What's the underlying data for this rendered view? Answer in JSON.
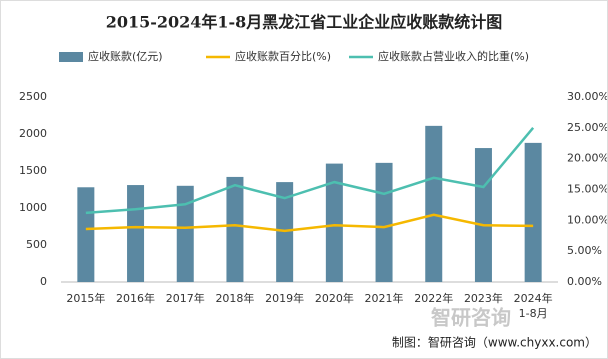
{
  "chart_data": {
    "type": "bar",
    "title": "2015-2024年1-8月黑龙江省工业企业应收账款统计图",
    "categories": [
      "2015年",
      "2016年",
      "2017年",
      "2018年",
      "2019年",
      "2020年",
      "2021年",
      "2022年",
      "2023年",
      "2024年\n1-8月"
    ],
    "series": [
      {
        "name": "应收账款(亿元)",
        "type": "bar",
        "color": "#5b88a1",
        "values": [
          1280,
          1310,
          1300,
          1420,
          1350,
          1600,
          1610,
          2110,
          1810,
          1880
        ]
      },
      {
        "name": "应收账款百分比(%)",
        "type": "line",
        "axis": "y2",
        "color": "#f5b800",
        "values": [
          8.6,
          8.9,
          8.8,
          9.2,
          8.3,
          9.2,
          8.9,
          10.9,
          9.2,
          9.1
        ]
      },
      {
        "name": "应收账款占营业收入的比重(%)",
        "type": "line",
        "axis": "y2",
        "color": "#4dbfb0",
        "values": [
          11.2,
          11.8,
          12.6,
          15.7,
          13.6,
          16.2,
          14.3,
          16.9,
          15.4,
          25.0
        ]
      }
    ],
    "ylim": [
      0,
      2500
    ],
    "yticks": [
      0,
      500,
      1000,
      1500,
      2000,
      2500
    ],
    "y2lim": [
      0,
      30
    ],
    "y2ticks": [
      {
        "value": 0,
        "label": "0.00%"
      },
      {
        "value": 5,
        "label": "5.00%"
      },
      {
        "value": 10,
        "label": "10.00%"
      },
      {
        "value": 15,
        "label": "15.00%"
      },
      {
        "value": 20,
        "label": "20.00%"
      },
      {
        "value": 25,
        "label": "25.00%"
      },
      {
        "value": 30,
        "label": "30.00%"
      }
    ],
    "grid": false,
    "source": "制图：智研咨询（www.chyxx.com）",
    "watermark": "智研咨询"
  }
}
